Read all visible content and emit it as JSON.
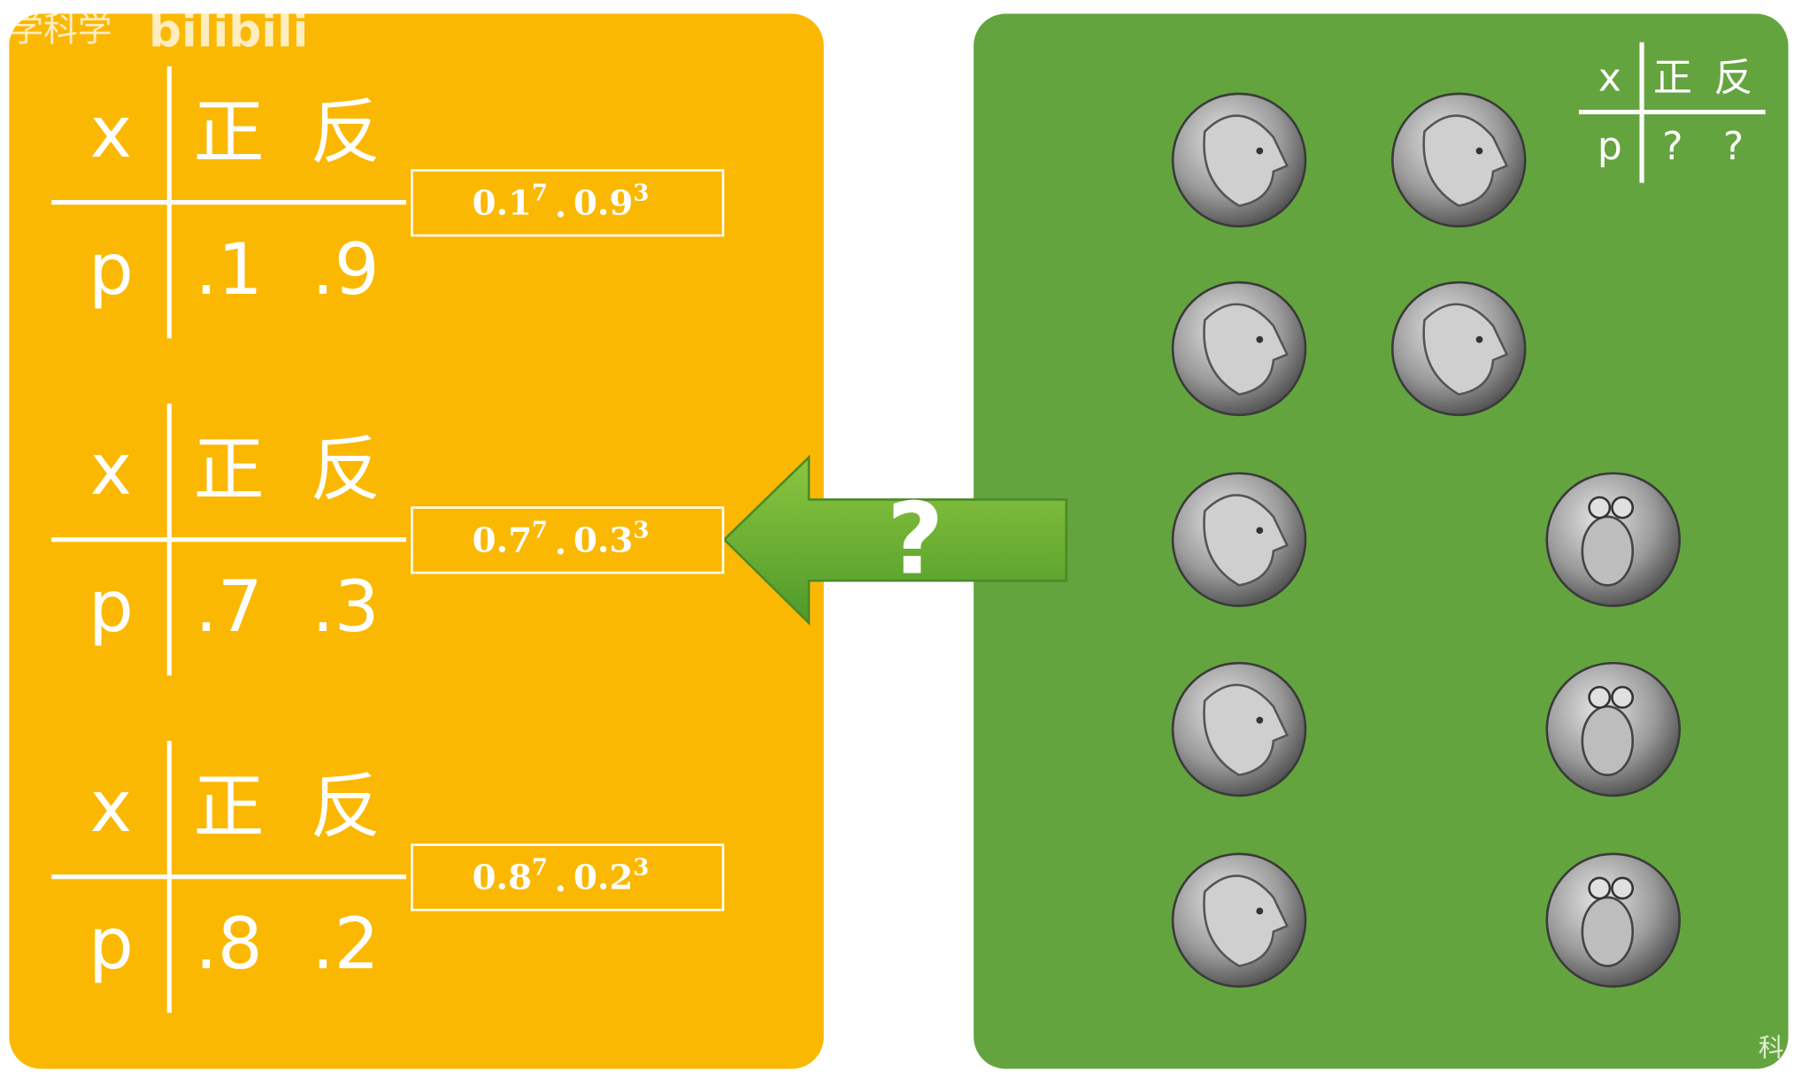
{
  "watermark": {
    "text": "学科学",
    "logo": "bilibili",
    "corner": "科"
  },
  "left_tables": [
    {
      "header": [
        "x",
        "正",
        "反"
      ],
      "row": [
        "p",
        ".1",
        ".9"
      ],
      "formula": {
        "a": "0.1",
        "a_exp": "7",
        "operator": "·",
        "b": "0.9",
        "b_exp": "3"
      }
    },
    {
      "header": [
        "x",
        "正",
        "反"
      ],
      "row": [
        "p",
        ".7",
        ".3"
      ],
      "formula": {
        "a": "0.7",
        "a_exp": "7",
        "operator": "·",
        "b": "0.3",
        "b_exp": "3"
      }
    },
    {
      "header": [
        "x",
        "正",
        "反"
      ],
      "row": [
        "p",
        ".8",
        ".2"
      ],
      "formula": {
        "a": "0.8",
        "a_exp": "7",
        "operator": "·",
        "b": "0.2",
        "b_exp": "3"
      }
    }
  ],
  "arrow": {
    "label": "?"
  },
  "right_table": {
    "header": [
      "x",
      "正",
      "反"
    ],
    "row": [
      "p",
      "?",
      "?"
    ]
  }
}
